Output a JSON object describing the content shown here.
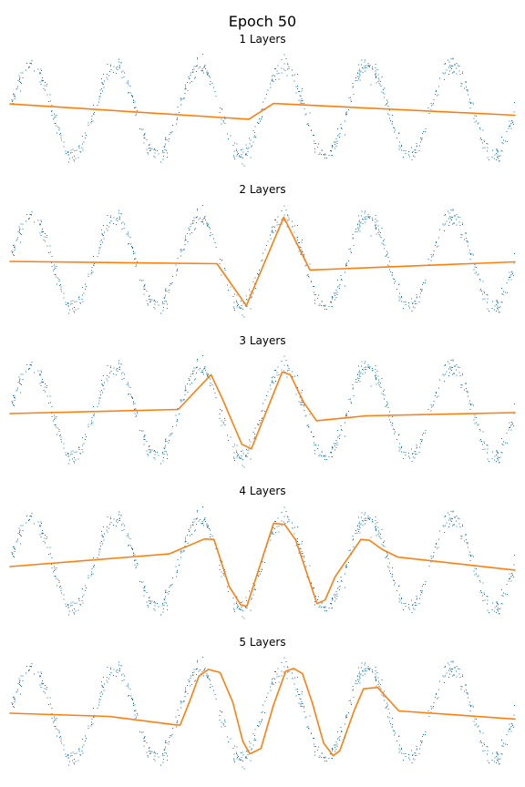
{
  "figure": {
    "title": "Epoch 50"
  },
  "colors": {
    "data_points": "#1f77b4",
    "prediction_line": "#ff7f0e",
    "background": "#ffffff"
  },
  "chart_data": [
    {
      "type": "line",
      "title": "1 Layers",
      "xlabel": "",
      "ylabel": "",
      "axes": "hidden",
      "grid": false,
      "xlim": [
        0,
        1
      ],
      "ylim": [
        -1.25,
        1.25
      ],
      "series": [
        {
          "type": "scatter",
          "function": "sin(12*pi*x)",
          "points": 800,
          "noise": 0.1
        },
        {
          "x": [
            0,
            0.473,
            0.522,
            1
          ],
          "y": [
            0.14,
            -0.2,
            0.15,
            -0.11
          ]
        }
      ]
    },
    {
      "type": "line",
      "title": "2 Layers",
      "xlabel": "",
      "ylabel": "",
      "axes": "hidden",
      "grid": false,
      "xlim": [
        0,
        1
      ],
      "ylim": [
        -1.25,
        1.25
      ],
      "series": [
        {
          "type": "scatter",
          "function": "sin(12*pi*x)",
          "points": 800,
          "noise": 0.1
        },
        {
          "x": [
            0,
            0.41,
            0.468,
            0.542,
            0.594,
            1
          ],
          "y": [
            0,
            -0.05,
            -0.98,
            0.98,
            -0.19,
            -0.01
          ]
        }
      ]
    },
    {
      "type": "line",
      "title": "3 Layers",
      "xlabel": "",
      "ylabel": "",
      "axes": "hidden",
      "grid": false,
      "xlim": [
        0,
        1
      ],
      "ylim": [
        -1.25,
        1.25
      ],
      "series": [
        {
          "type": "scatter",
          "function": "sin(12*pi*x)",
          "points": 800,
          "noise": 0.1
        },
        {
          "x": [
            0,
            0.333,
            0.398,
            0.42,
            0.459,
            0.478,
            0.539,
            0.555,
            0.582,
            0.607,
            0.705,
            1
          ],
          "y": [
            -0.04,
            0.05,
            0.82,
            0.3,
            -0.72,
            -0.82,
            0.88,
            0.82,
            0.2,
            -0.2,
            -0.09,
            -0.02
          ]
        }
      ]
    },
    {
      "type": "line",
      "title": "4 Layers",
      "xlabel": "",
      "ylabel": "",
      "axes": "hidden",
      "grid": false,
      "xlim": [
        0,
        1
      ],
      "ylim": [
        -1.25,
        1.25
      ],
      "series": [
        {
          "type": "scatter",
          "function": "sin(12*pi*x)",
          "points": 800,
          "noise": 0.1
        },
        {
          "x": [
            0,
            0.315,
            0.385,
            0.404,
            0.434,
            0.457,
            0.469,
            0.522,
            0.544,
            0.566,
            0.608,
            0.624,
            0.644,
            0.695,
            0.712,
            0.737,
            0.768,
            1
          ],
          "y": [
            -0.08,
            0.2,
            0.53,
            0.52,
            -0.52,
            -0.93,
            -0.96,
            0.88,
            0.85,
            0.5,
            -0.9,
            -0.82,
            -0.3,
            0.52,
            0.5,
            0.3,
            0.13,
            -0.16
          ]
        }
      ]
    },
    {
      "type": "line",
      "title": "5 Layers",
      "xlabel": "",
      "ylabel": "",
      "axes": "hidden",
      "grid": false,
      "xlim": [
        0,
        1
      ],
      "ylim": [
        -1.25,
        1.25
      ],
      "series": [
        {
          "type": "scatter",
          "function": "sin(12*pi*x)",
          "points": 800,
          "noise": 0.1
        },
        {
          "x": [
            0,
            0.196,
            0.33,
            0.337,
            0.356,
            0.374,
            0.393,
            0.416,
            0.441,
            0.461,
            0.475,
            0.497,
            0.522,
            0.546,
            0.562,
            0.579,
            0.599,
            0.621,
            0.64,
            0.653,
            0.682,
            0.7,
            0.728,
            0.77,
            1
          ],
          "y": [
            0,
            -0.07,
            -0.26,
            -0.26,
            0.27,
            0.82,
            0.97,
            0.9,
            0.25,
            -0.62,
            -0.9,
            -0.78,
            0.19,
            0.93,
            0.99,
            0.88,
            0.22,
            -0.66,
            -0.94,
            -0.83,
            0.07,
            0.54,
            0.57,
            0.05,
            -0.13
          ]
        }
      ]
    }
  ]
}
